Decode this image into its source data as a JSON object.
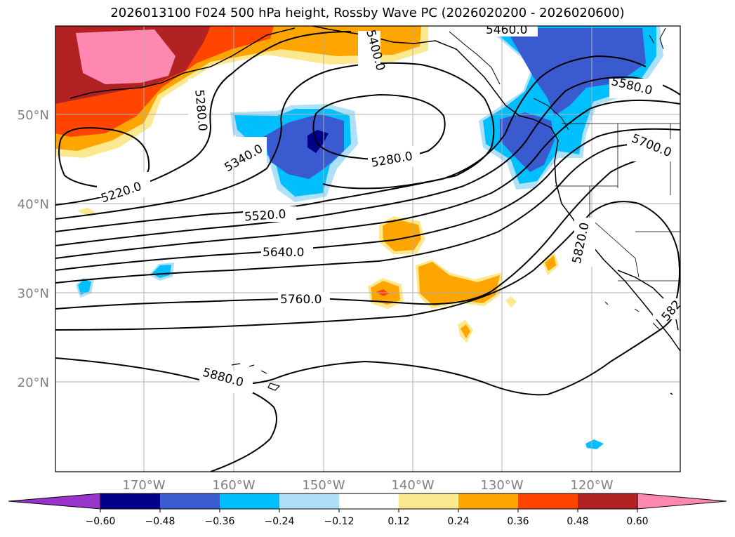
{
  "title": "2026013100 F024 500 hPa height, Rossby Wave PC (2026020200 - 2026020600)",
  "map": {
    "lat_labels": [
      "50°N",
      "40°N",
      "30°N",
      "20°N"
    ],
    "lon_labels": [
      "170°W",
      "160°W",
      "150°W",
      "140°W",
      "130°W",
      "120°W"
    ],
    "contour_labels": [
      "5460.0",
      "5400.0",
      "5580.0",
      "5280.0",
      "5340.0",
      "5280.0",
      "5700.0",
      "5220.0",
      "5520.0",
      "5820.0",
      "5640.0",
      "5760.0",
      "582",
      "5880.0"
    ]
  },
  "colorbar": {
    "tick_labels": [
      "−0.60",
      "−0.48",
      "−0.36",
      "−0.24",
      "−0.12",
      "0.12",
      "0.24",
      "0.36",
      "0.48",
      "0.60"
    ],
    "colors": [
      "#9933cc",
      "#00008b",
      "#3a5bcf",
      "#00bfff",
      "#aee0f8",
      "#ffffff",
      "#fce98f",
      "#ffa500",
      "#ff4500",
      "#b22222",
      "#ff88b0"
    ]
  },
  "colors": {
    "neg_strong": "#00008b",
    "neg_mid": "#3a5bcf",
    "neg": "#00bfff",
    "neg_light": "#aee0f8",
    "pos_light": "#fce98f",
    "pos": "#ffa500",
    "pos_mid": "#ff4500",
    "pos_strong": "#b22222",
    "pos_max": "#ff88b0"
  }
}
